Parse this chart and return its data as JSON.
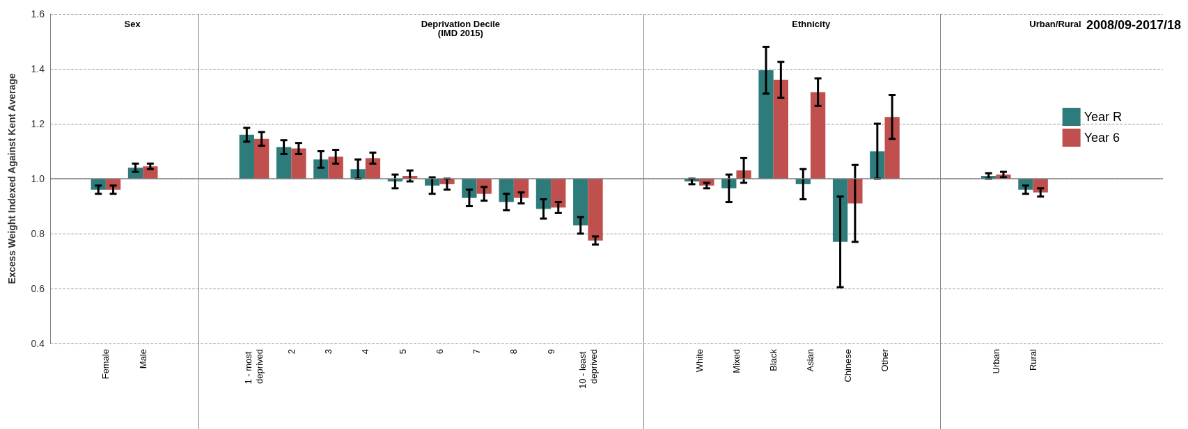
{
  "chart_data": {
    "type": "bar",
    "title": "2008/09-2017/18",
    "ylabel": "Excess Weight Indexed Against Kent Average",
    "annotations": [
      "Sex",
      "Deprivation Decile\n(IMD 2015)",
      "Ethnicity",
      "Urban/Rural"
    ],
    "categories": [
      null,
      "Female",
      "Male",
      null,
      null,
      "1 - most deprived",
      "2",
      "3",
      "4",
      "5",
      "6",
      "7",
      "8",
      "9",
      "10 - least deprived",
      null,
      null,
      "White",
      "Mixed",
      "Black",
      "Asian",
      "Chinese",
      "Other",
      null,
      null,
      "Urban",
      "Rural",
      null,
      null,
      null
    ],
    "series": [
      {
        "name": "Year R",
        "color": "#2e7b7b",
        "base": [
          null,
          1,
          1,
          null,
          null,
          1,
          1,
          1,
          1,
          1,
          1,
          1,
          1,
          1,
          1,
          null,
          null,
          1,
          1,
          1,
          1,
          1,
          1,
          null,
          null,
          1,
          1,
          null,
          null,
          null
        ],
        "values": [
          null,
          -0.04,
          0.04,
          null,
          null,
          0.16,
          0.115,
          0.07,
          0.035,
          -0.01,
          -0.025,
          -0.07,
          -0.085,
          -0.11,
          -0.17,
          null,
          null,
          -0.01,
          -0.035,
          0.395,
          -0.02,
          -0.23,
          0.1,
          null,
          null,
          0.01,
          -0.04,
          null,
          null,
          null
        ],
        "errors": [
          null,
          0.015,
          0.015,
          null,
          null,
          0.025,
          0.025,
          0.03,
          0.035,
          0.025,
          0.03,
          0.03,
          0.03,
          0.035,
          0.03,
          null,
          null,
          0.01,
          0.05,
          0.085,
          0.055,
          0.165,
          0.1,
          null,
          null,
          0.01,
          0.015,
          null,
          null,
          null
        ]
      },
      {
        "name": "Year 6",
        "color": "#c0504d",
        "base": [
          null,
          1,
          1,
          null,
          null,
          1,
          1,
          1,
          1,
          1,
          1,
          1,
          1,
          1,
          1,
          null,
          null,
          1,
          1,
          1,
          1,
          1,
          1,
          null,
          null,
          1,
          1,
          null,
          null,
          null
        ],
        "values": [
          null,
          -0.04,
          0.045,
          null,
          null,
          0.145,
          0.11,
          0.08,
          0.075,
          0.01,
          -0.02,
          -0.055,
          -0.07,
          -0.105,
          -0.225,
          null,
          null,
          -0.025,
          0.03,
          0.36,
          0.315,
          -0.09,
          0.225,
          null,
          null,
          0.015,
          -0.05,
          null,
          null,
          null
        ],
        "errors": [
          null,
          0.015,
          0.01,
          null,
          null,
          0.025,
          0.02,
          0.025,
          0.02,
          0.02,
          0.02,
          0.025,
          0.02,
          0.02,
          0.015,
          null,
          null,
          0.01,
          0.045,
          0.065,
          0.05,
          0.14,
          0.08,
          null,
          null,
          0.01,
          0.015,
          null,
          null,
          null
        ]
      }
    ],
    "ylim": [
      0.4,
      1.6
    ],
    "yticks": [
      {
        "value": 0.4,
        "label": "0.4"
      },
      {
        "value": 0.6,
        "label": "0.6"
      },
      {
        "value": 0.8,
        "label": "0.8"
      },
      {
        "value": 1,
        "label": "1.0"
      },
      {
        "value": 1.2,
        "label": "1.2"
      },
      {
        "value": 1.4,
        "label": "1.4"
      },
      {
        "value": 1.6,
        "label": "1.6"
      }
    ],
    "ref_lines": [
      {
        "axis": "y",
        "value": 1,
        "color": "#7f7f7f",
        "line_style": "solid"
      }
    ],
    "grid": "y",
    "legend": "right"
  }
}
